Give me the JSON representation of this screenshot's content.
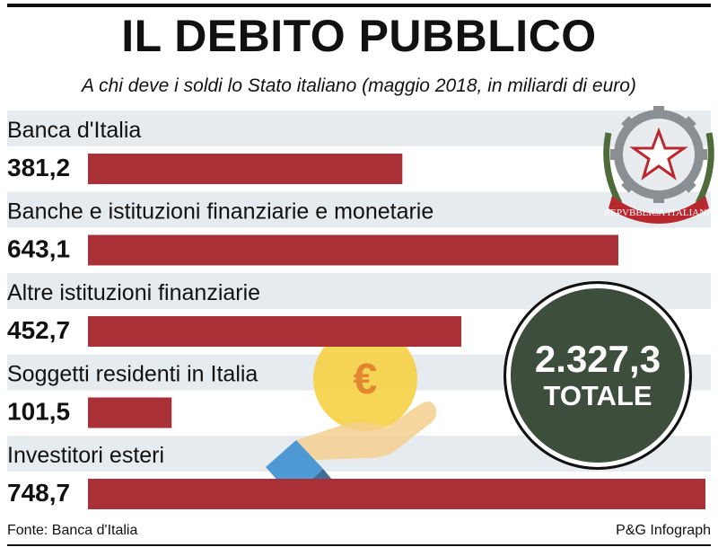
{
  "header": {
    "title": "IL DEBITO PUBBLICO",
    "subtitle": "A chi deve i soldi lo Stato italiano (maggio 2018, in miliardi di euro)"
  },
  "chart_data": {
    "type": "bar",
    "orientation": "horizontal",
    "categories": [
      "Banca d'Italia",
      "Banche e istituzioni finanziarie e monetarie",
      "Altre istituzioni finanziarie",
      "Soggetti residenti in Italia",
      "Investitori esteri"
    ],
    "values": [
      381.2,
      643.1,
      452.7,
      101.5,
      748.7
    ],
    "value_labels": [
      "381,2",
      "643,1",
      "452,7",
      "101,5",
      "748,7"
    ],
    "bar_color": "#a83036",
    "band_color": "#e6ebf0",
    "xlim": [
      0,
      748.7
    ],
    "grid": false
  },
  "total": {
    "value": "2.327,3",
    "label": "TOTALE",
    "color": "#3e4e3d"
  },
  "emblem": {
    "text": "REPVBBLICA ITALIANA",
    "icon": "italian-republic-emblem-icon"
  },
  "illustration": {
    "icon": "euro-coin-hand-icon",
    "symbol": "€"
  },
  "footer": {
    "source": "Fonte: Banca d'Italia",
    "credit": "P&G Infograph"
  }
}
